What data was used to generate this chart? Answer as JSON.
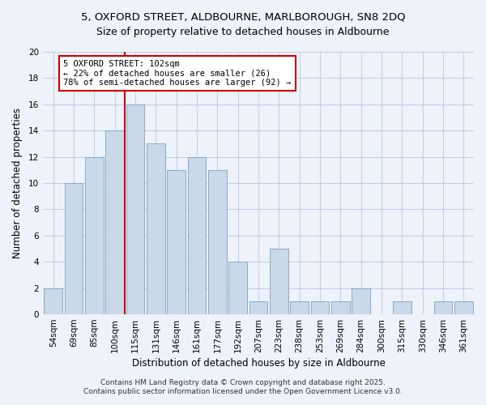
{
  "title": "5, OXFORD STREET, ALDBOURNE, MARLBOROUGH, SN8 2DQ",
  "subtitle": "Size of property relative to detached houses in Aldbourne",
  "xlabel": "Distribution of detached houses by size in Aldbourne",
  "ylabel": "Number of detached properties",
  "bar_labels": [
    "54sqm",
    "69sqm",
    "85sqm",
    "100sqm",
    "115sqm",
    "131sqm",
    "146sqm",
    "161sqm",
    "177sqm",
    "192sqm",
    "207sqm",
    "223sqm",
    "238sqm",
    "253sqm",
    "269sqm",
    "284sqm",
    "300sqm",
    "315sqm",
    "330sqm",
    "346sqm",
    "361sqm"
  ],
  "bar_values": [
    2,
    10,
    12,
    14,
    16,
    13,
    11,
    12,
    11,
    4,
    1,
    5,
    1,
    1,
    1,
    2,
    0,
    1,
    0,
    1,
    1
  ],
  "bar_color": "#c9d9ea",
  "bar_edge_color": "#8baac8",
  "vline_color": "#cc0000",
  "annotation_title": "5 OXFORD STREET: 102sqm",
  "annotation_line1": "← 22% of detached houses are smaller (26)",
  "annotation_line2": "78% of semi-detached houses are larger (92) →",
  "annotation_box_facecolor": "#ffffff",
  "annotation_box_edgecolor": "#cc0000",
  "ylim": [
    0,
    20
  ],
  "yticks": [
    0,
    2,
    4,
    6,
    8,
    10,
    12,
    14,
    16,
    18,
    20
  ],
  "footer1": "Contains HM Land Registry data © Crown copyright and database right 2025.",
  "footer2": "Contains public sector information licensed under the Open Government Licence v3.0.",
  "bg_color": "#eef2fb",
  "grid_color": "#c5d0e8",
  "title_fontsize": 9.5,
  "subtitle_fontsize": 9,
  "axis_label_fontsize": 8.5,
  "tick_fontsize": 7.5,
  "annotation_fontsize": 7.5,
  "footer_fontsize": 6.5
}
